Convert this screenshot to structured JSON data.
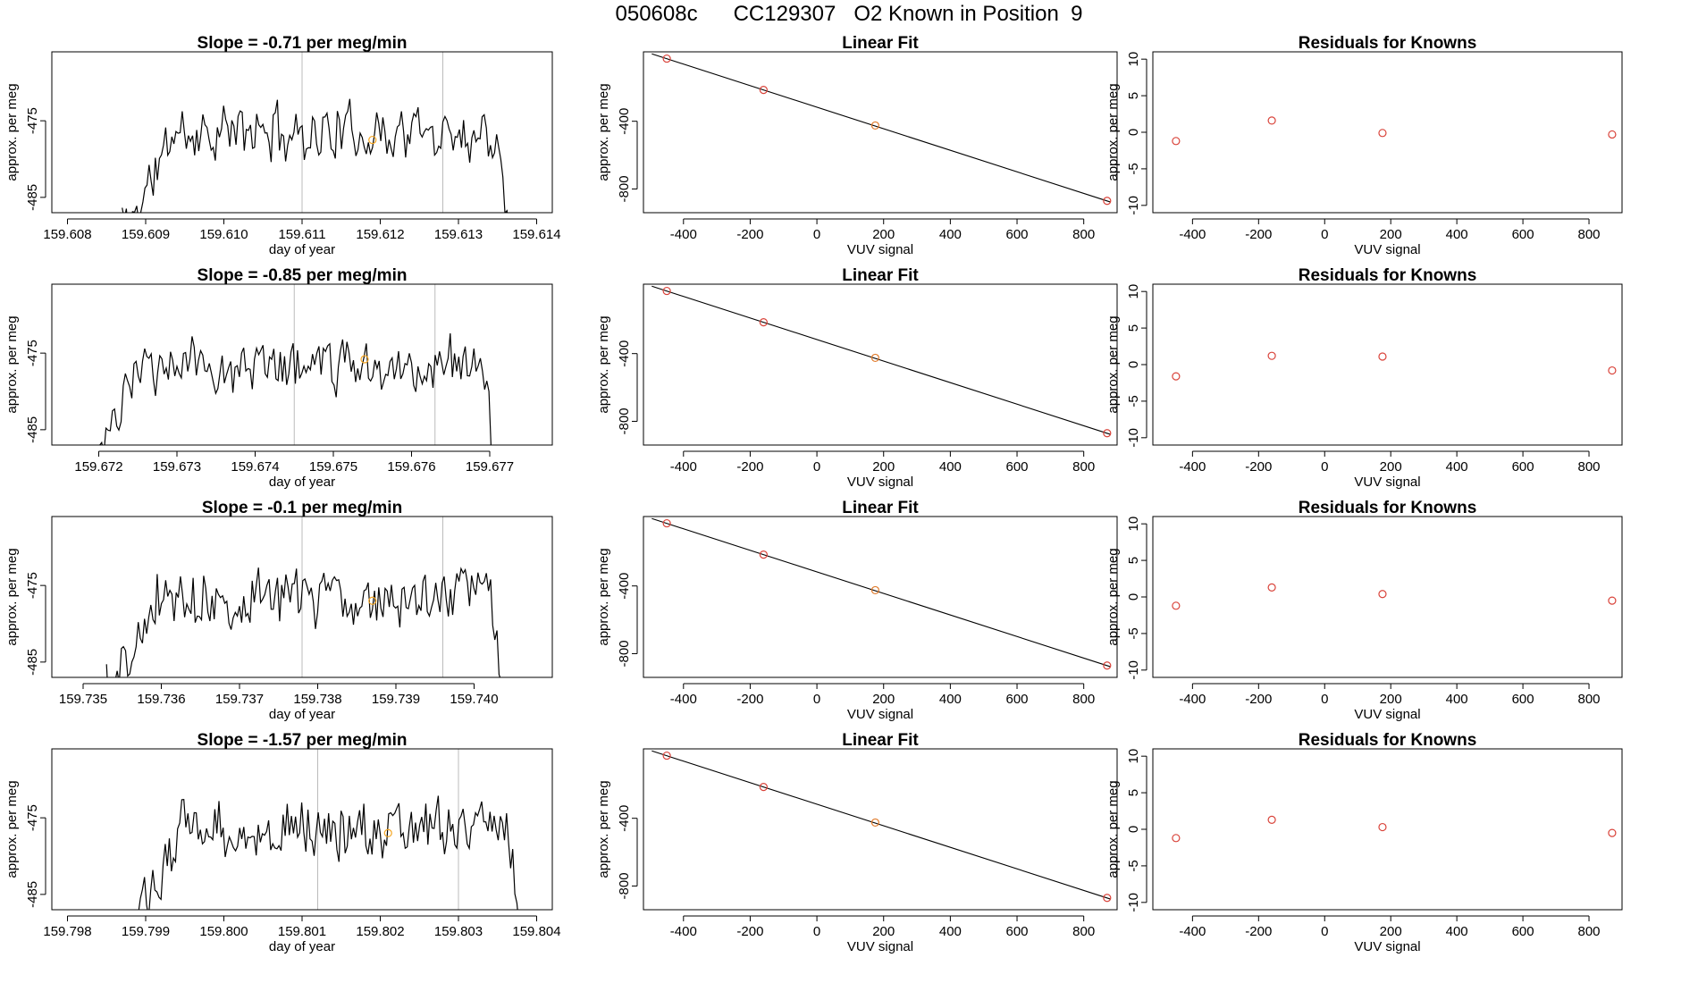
{
  "figure": {
    "main_title": "050608c      CC129307   O2 Known in Position  9"
  },
  "chart_data": [
    {
      "type": "line",
      "panel": "timeseries",
      "row": 1,
      "title": "Slope =  -0.71  per meg/min",
      "xlabel": "day of year",
      "ylabel": "approx. per meg",
      "xlim": [
        159.6078,
        159.6142
      ],
      "ylim": [
        -487,
        -466
      ],
      "xticks": [
        159.608,
        159.609,
        159.61,
        159.611,
        159.612,
        159.613,
        159.614
      ],
      "xtick_labels": [
        "159.608",
        "159.609",
        "159.610",
        "159.611",
        "159.612",
        "159.613",
        "159.614"
      ],
      "yticks": [
        -485,
        -475
      ],
      "ytick_labels": [
        "-485",
        "-475"
      ],
      "vlines": [
        159.611,
        159.6128
      ],
      "t_start": 159.6087,
      "t_end": 159.6137,
      "seed": 11,
      "highlight": {
        "x": 159.6119,
        "y": -477.5
      }
    },
    {
      "type": "scatter",
      "panel": "linear_fit",
      "row": 1,
      "title": "Linear Fit",
      "xlabel": "VUV signal",
      "ylabel": "approx. per meg",
      "xlim": [
        -520,
        900
      ],
      "ylim": [
        -940,
        10
      ],
      "xticks": [
        -400,
        -200,
        0,
        200,
        400,
        600,
        800
      ],
      "xtick_labels": [
        "-400",
        "-200",
        "0",
        "200",
        "400",
        "600",
        "800"
      ],
      "yticks": [
        -800,
        -400
      ],
      "ytick_labels": [
        "-800",
        "-400"
      ],
      "points": [
        {
          "x": -450,
          "y": -30
        },
        {
          "x": -160,
          "y": -215
        },
        {
          "x": 175,
          "y": -425
        },
        {
          "x": 870,
          "y": -870
        }
      ],
      "fit_line": {
        "x": [
          -495,
          880
        ],
        "y": [
          -2,
          -877
        ]
      },
      "highlight_index": 2
    },
    {
      "type": "scatter",
      "panel": "residuals",
      "row": 1,
      "title": "Residuals for Knowns",
      "xlabel": "VUV signal",
      "ylabel": "approx. per meg",
      "xlim": [
        -520,
        900
      ],
      "ylim": [
        -11,
        11
      ],
      "xticks": [
        -400,
        -200,
        0,
        200,
        400,
        600,
        800
      ],
      "xtick_labels": [
        "-400",
        "-200",
        "0",
        "200",
        "400",
        "600",
        "800"
      ],
      "yticks": [
        -10,
        -5,
        0,
        5,
        10
      ],
      "ytick_labels": [
        "-10",
        "-5",
        "0",
        "5",
        "10"
      ],
      "points": [
        {
          "x": -450,
          "y": -1.2
        },
        {
          "x": -160,
          "y": 1.6
        },
        {
          "x": 175,
          "y": -0.1
        },
        {
          "x": 870,
          "y": -0.3
        }
      ]
    },
    {
      "type": "line",
      "panel": "timeseries",
      "row": 2,
      "title": "Slope =  -0.85  per meg/min",
      "xlabel": "day of year",
      "ylabel": "approx. per meg",
      "xlim": [
        159.6714,
        159.6778
      ],
      "ylim": [
        -487,
        -466
      ],
      "xticks": [
        159.672,
        159.673,
        159.674,
        159.675,
        159.676,
        159.677
      ],
      "xtick_labels": [
        "159.672",
        "159.673",
        "159.674",
        "159.675",
        "159.676",
        "159.677"
      ],
      "yticks": [
        -485,
        -475
      ],
      "ytick_labels": [
        "-485",
        "-475"
      ],
      "vlines": [
        159.6745,
        159.6763
      ],
      "t_start": 159.6719,
      "t_end": 159.6771,
      "seed": 23,
      "highlight": {
        "x": 159.6754,
        "y": -475.8
      }
    },
    {
      "type": "scatter",
      "panel": "linear_fit",
      "row": 2,
      "title": "Linear Fit",
      "xlabel": "VUV signal",
      "ylabel": "approx. per meg",
      "xlim": [
        -520,
        900
      ],
      "ylim": [
        -940,
        10
      ],
      "xticks": [
        -400,
        -200,
        0,
        200,
        400,
        600,
        800
      ],
      "xtick_labels": [
        "-400",
        "-200",
        "0",
        "200",
        "400",
        "600",
        "800"
      ],
      "yticks": [
        -800,
        -400
      ],
      "ytick_labels": [
        "-800",
        "-400"
      ],
      "points": [
        {
          "x": -450,
          "y": -30
        },
        {
          "x": -160,
          "y": -215
        },
        {
          "x": 175,
          "y": -425
        },
        {
          "x": 870,
          "y": -870
        }
      ],
      "fit_line": {
        "x": [
          -495,
          880
        ],
        "y": [
          -2,
          -877
        ]
      },
      "highlight_index": 2
    },
    {
      "type": "scatter",
      "panel": "residuals",
      "row": 2,
      "title": "Residuals for Knowns",
      "xlabel": "VUV signal",
      "ylabel": "approx. per meg",
      "xlim": [
        -520,
        900
      ],
      "ylim": [
        -11,
        11
      ],
      "xticks": [
        -400,
        -200,
        0,
        200,
        400,
        600,
        800
      ],
      "xtick_labels": [
        "-400",
        "-200",
        "0",
        "200",
        "400",
        "600",
        "800"
      ],
      "yticks": [
        -10,
        -5,
        0,
        5,
        10
      ],
      "ytick_labels": [
        "-10",
        "-5",
        "0",
        "5",
        "10"
      ],
      "points": [
        {
          "x": -450,
          "y": -1.6
        },
        {
          "x": -160,
          "y": 1.2
        },
        {
          "x": 175,
          "y": 1.1
        },
        {
          "x": 870,
          "y": -0.8
        }
      ]
    },
    {
      "type": "line",
      "panel": "timeseries",
      "row": 3,
      "title": "Slope =  -0.1  per meg/min",
      "xlabel": "day of year",
      "ylabel": "approx. per meg",
      "xlim": [
        159.7346,
        159.741
      ],
      "ylim": [
        -487,
        -466
      ],
      "xticks": [
        159.735,
        159.736,
        159.737,
        159.738,
        159.739,
        159.74
      ],
      "xtick_labels": [
        "159.735",
        "159.736",
        "159.737",
        "159.738",
        "159.739",
        "159.740"
      ],
      "yticks": [
        -485,
        -475
      ],
      "ytick_labels": [
        "-485",
        "-475"
      ],
      "vlines": [
        159.7378,
        159.7396
      ],
      "t_start": 159.7353,
      "t_end": 159.7404,
      "seed": 37,
      "highlight": {
        "x": 159.7387,
        "y": -477.0
      }
    },
    {
      "type": "scatter",
      "panel": "linear_fit",
      "row": 3,
      "title": "Linear Fit",
      "xlabel": "VUV signal",
      "ylabel": "approx. per meg",
      "xlim": [
        -520,
        900
      ],
      "ylim": [
        -940,
        10
      ],
      "xticks": [
        -400,
        -200,
        0,
        200,
        400,
        600,
        800
      ],
      "xtick_labels": [
        "-400",
        "-200",
        "0",
        "200",
        "400",
        "600",
        "800"
      ],
      "yticks": [
        -800,
        -400
      ],
      "ytick_labels": [
        "-800",
        "-400"
      ],
      "points": [
        {
          "x": -450,
          "y": -30
        },
        {
          "x": -160,
          "y": -215
        },
        {
          "x": 175,
          "y": -425
        },
        {
          "x": 870,
          "y": -870
        }
      ],
      "fit_line": {
        "x": [
          -495,
          880
        ],
        "y": [
          -2,
          -877
        ]
      },
      "highlight_index": 2
    },
    {
      "type": "scatter",
      "panel": "residuals",
      "row": 3,
      "title": "Residuals for Knowns",
      "xlabel": "VUV signal",
      "ylabel": "approx. per meg",
      "xlim": [
        -520,
        900
      ],
      "ylim": [
        -11,
        11
      ],
      "xticks": [
        -400,
        -200,
        0,
        200,
        400,
        600,
        800
      ],
      "xtick_labels": [
        "-400",
        "-200",
        "0",
        "200",
        "400",
        "600",
        "800"
      ],
      "yticks": [
        -10,
        -5,
        0,
        5,
        10
      ],
      "ytick_labels": [
        "-10",
        "-5",
        "0",
        "5",
        "10"
      ],
      "points": [
        {
          "x": -450,
          "y": -1.2
        },
        {
          "x": -160,
          "y": 1.3
        },
        {
          "x": 175,
          "y": 0.4
        },
        {
          "x": 870,
          "y": -0.5
        }
      ]
    },
    {
      "type": "line",
      "panel": "timeseries",
      "row": 4,
      "title": "Slope =  -1.57  per meg/min",
      "xlabel": "day of year",
      "ylabel": "approx. per meg",
      "xlim": [
        159.7978,
        159.8042
      ],
      "ylim": [
        -487,
        -466
      ],
      "xticks": [
        159.798,
        159.799,
        159.8,
        159.801,
        159.802,
        159.803,
        159.804
      ],
      "xtick_labels": [
        "159.798",
        "159.799",
        "159.800",
        "159.801",
        "159.802",
        "159.803",
        "159.804"
      ],
      "yticks": [
        -485,
        -475
      ],
      "ytick_labels": [
        "-485",
        "-475"
      ],
      "vlines": [
        159.8012,
        159.803
      ],
      "t_start": 159.7988,
      "t_end": 159.8038,
      "seed": 53,
      "highlight": {
        "x": 159.8021,
        "y": -477.0
      }
    },
    {
      "type": "scatter",
      "panel": "linear_fit",
      "row": 4,
      "title": "Linear Fit",
      "xlabel": "VUV signal",
      "ylabel": "approx. per meg",
      "xlim": [
        -520,
        900
      ],
      "ylim": [
        -940,
        10
      ],
      "xticks": [
        -400,
        -200,
        0,
        200,
        400,
        600,
        800
      ],
      "xtick_labels": [
        "-400",
        "-200",
        "0",
        "200",
        "400",
        "600",
        "800"
      ],
      "yticks": [
        -800,
        -400
      ],
      "ytick_labels": [
        "-800",
        "-400"
      ],
      "points": [
        {
          "x": -450,
          "y": -30
        },
        {
          "x": -160,
          "y": -215
        },
        {
          "x": 175,
          "y": -425
        },
        {
          "x": 870,
          "y": -870
        }
      ],
      "fit_line": {
        "x": [
          -495,
          880
        ],
        "y": [
          -2,
          -877
        ]
      },
      "highlight_index": 2
    },
    {
      "type": "scatter",
      "panel": "residuals",
      "row": 4,
      "title": "Residuals for Knowns",
      "xlabel": "VUV signal",
      "ylabel": "approx. per meg",
      "xlim": [
        -520,
        900
      ],
      "ylim": [
        -11,
        11
      ],
      "xticks": [
        -400,
        -200,
        0,
        200,
        400,
        600,
        800
      ],
      "xtick_labels": [
        "-400",
        "-200",
        "0",
        "200",
        "400",
        "600",
        "800"
      ],
      "yticks": [
        -10,
        -5,
        0,
        5,
        10
      ],
      "ytick_labels": [
        "-10",
        "-5",
        "0",
        "5",
        "10"
      ],
      "points": [
        {
          "x": -450,
          "y": -1.2
        },
        {
          "x": -160,
          "y": 1.3
        },
        {
          "x": 175,
          "y": 0.3
        },
        {
          "x": 870,
          "y": -0.5
        }
      ]
    }
  ],
  "colors": {
    "line": "#000000",
    "point": "#d9433a",
    "highlight": "#f5a623",
    "vline": "#bbbbbb",
    "frame": "#000000"
  }
}
